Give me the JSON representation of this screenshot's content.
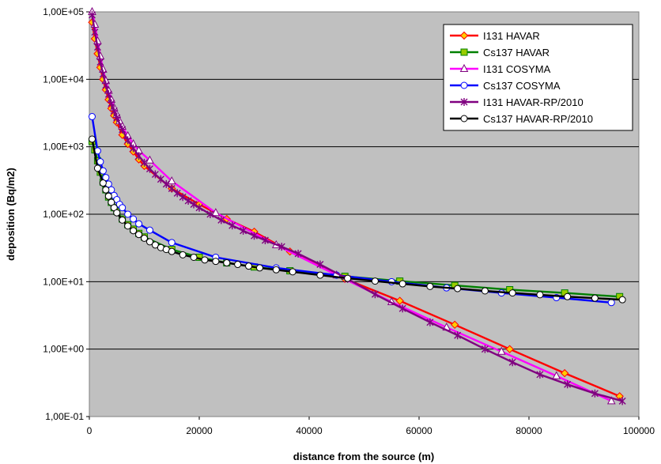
{
  "chart_data": {
    "type": "line",
    "title": "",
    "xlabel": "distance from the source (m)",
    "ylabel": "deposition (Bq/m2)",
    "xlim": [
      0,
      100000
    ],
    "ylim": [
      0.1,
      100000
    ],
    "yscale": "log",
    "grid": true,
    "plot_background": "#c0c0c0",
    "legend_position": "top-right",
    "x_ticks": [
      0,
      20000,
      40000,
      60000,
      80000,
      100000
    ],
    "x_tick_labels": [
      "0",
      "20000",
      "40000",
      "60000",
      "80000",
      "100000"
    ],
    "y_ticks": [
      0.1,
      1,
      10,
      100,
      1000,
      10000,
      100000
    ],
    "y_tick_labels": [
      "1,00E-01",
      "1,00E+00",
      "1,00E+01",
      "1,00E+02",
      "1,00E+03",
      "1,00E+04",
      "1,00E+05"
    ],
    "series": [
      {
        "name": "I131 HAVAR",
        "color": "#ff0000",
        "marker": "diamond",
        "marker_fill": "#ffcc00",
        "marker_stroke": "#ff0000",
        "x": [
          500,
          1000,
          1500,
          2000,
          2500,
          3000,
          3500,
          4000,
          4500,
          5000,
          6000,
          7000,
          8000,
          9000,
          10000,
          15000,
          20000,
          25000,
          30000,
          36500,
          46500,
          56500,
          66500,
          76500,
          86500,
          96500
        ],
        "y": [
          70000,
          40000,
          24000,
          15000,
          10000,
          7000,
          5000,
          3700,
          2900,
          2300,
          1500,
          1100,
          850,
          650,
          520,
          240,
          140,
          85,
          55,
          28,
          11,
          5.2,
          2.3,
          1.0,
          0.44,
          0.2
        ]
      },
      {
        "name": "Cs137 HAVAR",
        "color": "#008000",
        "marker": "square",
        "marker_fill": "#99cc00",
        "marker_stroke": "#008000",
        "x": [
          500,
          1000,
          1500,
          2000,
          2500,
          3000,
          3500,
          4000,
          4500,
          5000,
          6000,
          7000,
          8000,
          9000,
          10000,
          15000,
          20000,
          25000,
          30000,
          36500,
          46500,
          56500,
          66500,
          76500,
          86500,
          96500
        ],
        "y": [
          1200,
          900,
          620,
          420,
          300,
          230,
          180,
          150,
          125,
          110,
          85,
          70,
          60,
          52,
          46,
          30,
          23,
          19,
          16.5,
          14.5,
          12,
          10.2,
          8.8,
          7.6,
          6.8,
          6.0
        ]
      },
      {
        "name": "I131 COSYMA",
        "color": "#ff00ff",
        "marker": "triangle",
        "marker_fill": "#ffffff",
        "marker_stroke": "#800080",
        "x": [
          500,
          1000,
          1500,
          2000,
          2500,
          3000,
          3500,
          4000,
          4500,
          5000,
          5500,
          6000,
          7000,
          8000,
          9000,
          11000,
          15000,
          23000,
          34000,
          45000,
          55000,
          65000,
          75000,
          85000,
          95000
        ],
        "y": [
          100000,
          65000,
          37000,
          22000,
          14000,
          9500,
          6800,
          5000,
          3800,
          3000,
          2400,
          2000,
          1450,
          1100,
          880,
          630,
          310,
          105,
          35,
          12.5,
          5.0,
          2.1,
          0.92,
          0.4,
          0.17
        ]
      },
      {
        "name": "Cs137 COSYMA",
        "color": "#0000ff",
        "marker": "circle",
        "marker_fill": "#ffffff",
        "marker_stroke": "#0000ff",
        "x": [
          500,
          1500,
          2000,
          2500,
          3000,
          3500,
          4000,
          4500,
          5000,
          5500,
          6000,
          7000,
          8000,
          9000,
          11000,
          15000,
          23000,
          34000,
          45000,
          55000,
          65000,
          75000,
          85000,
          95000
        ],
        "y": [
          2800,
          870,
          600,
          440,
          350,
          280,
          230,
          190,
          165,
          140,
          125,
          100,
          85,
          72,
          58,
          38,
          23,
          16,
          12.5,
          10,
          8.1,
          6.8,
          5.8,
          4.9
        ]
      },
      {
        "name": "I131 HAVAR-RP/2010",
        "color": "#800080",
        "marker": "star",
        "marker_fill": "#800080",
        "marker_stroke": "#800080",
        "x": [
          500,
          1000,
          1500,
          2000,
          2500,
          3000,
          3500,
          4000,
          4500,
          5000,
          6000,
          7000,
          8000,
          9000,
          10000,
          11000,
          12000,
          13000,
          14000,
          15000,
          16000,
          17000,
          18000,
          19000,
          20000,
          22000,
          24000,
          26000,
          28000,
          30000,
          32000,
          35000,
          38000,
          42000,
          47000,
          52000,
          57000,
          62000,
          67000,
          72000,
          77000,
          82000,
          87000,
          92000,
          97000
        ],
        "y": [
          90000,
          50000,
          30000,
          18000,
          12000,
          8200,
          6000,
          4400,
          3400,
          2700,
          1800,
          1250,
          950,
          730,
          580,
          470,
          390,
          330,
          280,
          240,
          205,
          180,
          158,
          140,
          125,
          100,
          82,
          68,
          57,
          48,
          41,
          33,
          26,
          18,
          11,
          6.5,
          4.0,
          2.5,
          1.6,
          1.0,
          0.64,
          0.42,
          0.3,
          0.22,
          0.17
        ]
      },
      {
        "name": "Cs137 HAVAR-RP/2010",
        "color": "#000000",
        "marker": "circle",
        "marker_fill": "#ffffff",
        "marker_stroke": "#000000",
        "x": [
          500,
          1500,
          2500,
          3000,
          3500,
          4000,
          4500,
          5000,
          6000,
          7000,
          8000,
          9000,
          10000,
          11000,
          12000,
          13000,
          14000,
          15000,
          17000,
          19000,
          21000,
          23000,
          25000,
          27000,
          29000,
          31000,
          34000,
          37000,
          42000,
          47000,
          52000,
          57000,
          62000,
          67000,
          72000,
          77000,
          82000,
          87000,
          92000,
          97000
        ],
        "y": [
          1300,
          480,
          290,
          230,
          185,
          150,
          125,
          105,
          82,
          67,
          57,
          50,
          44,
          39,
          35,
          32,
          30,
          28,
          25,
          23,
          21,
          20,
          19,
          18,
          17,
          16,
          15,
          14,
          12.5,
          11.2,
          10.2,
          9.3,
          8.5,
          7.9,
          7.3,
          6.8,
          6.4,
          6.0,
          5.7,
          5.4
        ]
      }
    ]
  }
}
